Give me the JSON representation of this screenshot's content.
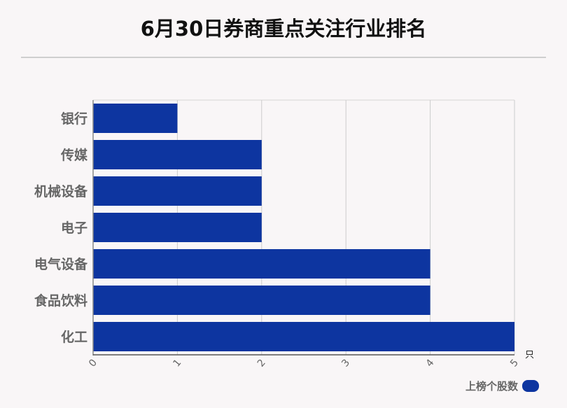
{
  "title": "6月30日券商重点关注行业排名",
  "colors": {
    "bar": "#0d35a0",
    "background": "#f9f6f7",
    "grid": "#cccccc"
  },
  "chart_data": {
    "type": "bar",
    "orientation": "horizontal",
    "title": "6月30日券商重点关注行业排名",
    "categories": [
      "银行",
      "传媒",
      "机械设备",
      "电子",
      "电气设备",
      "食品饮料",
      "化工"
    ],
    "series": [
      {
        "name": "上榜个股数",
        "values": [
          1,
          2,
          2,
          2,
          4,
          4,
          5
        ]
      }
    ],
    "xlim": [
      0,
      5
    ],
    "xticks": [
      "0",
      "1",
      "2",
      "3",
      "4",
      "5"
    ],
    "xunit": "只",
    "grid": true,
    "legend": "bottom-right"
  }
}
